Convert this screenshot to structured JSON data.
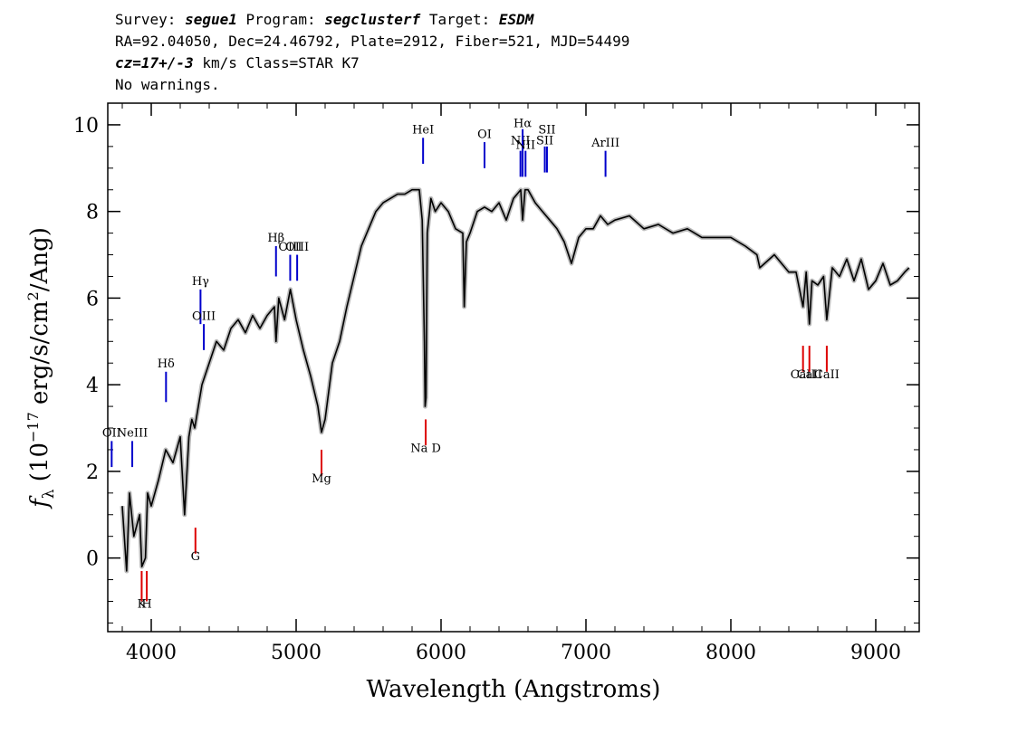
{
  "header": {
    "survey_label": "Survey:",
    "survey": "segue1",
    "program_label": "Program:",
    "program": "segclusterf",
    "target_label": "Target:",
    "target": "ESDM",
    "line2": "RA=92.04050, Dec=24.46792, Plate=2912, Fiber=521, MJD=54499",
    "cz": "cz=17+/-3",
    "line3_rest": "km/s Class=STAR K7",
    "line4": "No warnings."
  },
  "chart_data": {
    "type": "line",
    "xlabel": "Wavelength (Angstroms)",
    "ylabel_main": "f",
    "ylabel_sub": "λ",
    "ylabel_rest_1": " (10",
    "ylabel_exp": "−17",
    "ylabel_rest_2": " erg/s/cm",
    "ylabel_exp2": "2",
    "ylabel_rest_3": "/Ang)",
    "xlim": [
      3700,
      9300
    ],
    "ylim": [
      -1.7,
      10.5
    ],
    "x_ticks": [
      4000,
      5000,
      6000,
      7000,
      8000,
      9000
    ],
    "y_ticks": [
      0,
      2,
      4,
      6,
      8,
      10
    ],
    "x_minor_step": 200,
    "y_minor_step": 0.5,
    "series_colors": {
      "flux": "#000000",
      "model": "#bbbbbb",
      "emission": "#0000cc",
      "absorption": "#dd0000"
    },
    "flux": {
      "x": [
        3800,
        3830,
        3850,
        3880,
        3920,
        3935,
        3960,
        3975,
        4000,
        4050,
        4100,
        4150,
        4200,
        4230,
        4260,
        4280,
        4300,
        4350,
        4400,
        4450,
        4500,
        4550,
        4600,
        4650,
        4700,
        4750,
        4800,
        4850,
        4861,
        4880,
        4920,
        4960,
        5000,
        5050,
        5100,
        5150,
        5175,
        5200,
        5250,
        5300,
        5350,
        5400,
        5450,
        5500,
        5550,
        5600,
        5650,
        5700,
        5750,
        5800,
        5850,
        5870,
        5885,
        5890,
        5896,
        5905,
        5930,
        5960,
        6000,
        6050,
        6100,
        6150,
        6160,
        6175,
        6200,
        6250,
        6300,
        6350,
        6400,
        6450,
        6500,
        6550,
        6563,
        6580,
        6600,
        6650,
        6700,
        6750,
        6800,
        6850,
        6900,
        6950,
        7000,
        7050,
        7100,
        7150,
        7200,
        7300,
        7400,
        7500,
        7600,
        7700,
        7800,
        7900,
        8000,
        8100,
        8180,
        8200,
        8300,
        8400,
        8450,
        8498,
        8520,
        8542,
        8560,
        8600,
        8640,
        8662,
        8700,
        8750,
        8800,
        8850,
        8900,
        8950,
        9000,
        9050,
        9100,
        9150,
        9200,
        9230
      ],
      "y": [
        1.2,
        -0.3,
        1.5,
        0.5,
        1.0,
        -0.2,
        0.0,
        1.5,
        1.2,
        1.8,
        2.5,
        2.2,
        2.8,
        1.0,
        2.8,
        3.2,
        3.0,
        4.0,
        4.5,
        5.0,
        4.8,
        5.3,
        5.5,
        5.2,
        5.6,
        5.3,
        5.6,
        5.8,
        5.0,
        6.0,
        5.5,
        6.2,
        5.5,
        4.8,
        4.2,
        3.5,
        2.9,
        3.2,
        4.5,
        5.0,
        5.8,
        6.5,
        7.2,
        7.6,
        8.0,
        8.2,
        8.3,
        8.4,
        8.4,
        8.5,
        8.5,
        7.8,
        5.0,
        3.5,
        3.7,
        7.5,
        8.3,
        8.0,
        8.2,
        8.0,
        7.6,
        7.5,
        5.8,
        7.3,
        7.5,
        8.0,
        8.1,
        8.0,
        8.2,
        7.8,
        8.3,
        8.5,
        7.8,
        8.5,
        8.5,
        8.2,
        8.0,
        7.8,
        7.6,
        7.3,
        6.8,
        7.4,
        7.6,
        7.6,
        7.9,
        7.7,
        7.8,
        7.9,
        7.6,
        7.7,
        7.5,
        7.6,
        7.4,
        7.4,
        7.4,
        7.2,
        7.0,
        6.7,
        7.0,
        6.6,
        6.6,
        5.8,
        6.6,
        5.4,
        6.4,
        6.3,
        6.5,
        5.5,
        6.7,
        6.5,
        6.9,
        6.4,
        6.9,
        6.2,
        6.4,
        6.8,
        6.3,
        6.4,
        6.6,
        6.7
      ]
    },
    "emission_lines": [
      {
        "label": "OII",
        "x": 3727,
        "y0": 2.1,
        "y1": 2.7,
        "label_y": 2.8
      },
      {
        "label": "NeIII",
        "x": 3869,
        "y0": 2.1,
        "y1": 2.7,
        "label_y": 2.8
      },
      {
        "label": "Hδ",
        "x": 4102,
        "y0": 3.6,
        "y1": 4.3,
        "label_y": 4.4
      },
      {
        "label": "Hγ",
        "x": 4340,
        "y0": 5.4,
        "y1": 6.2,
        "label_y": 6.3
      },
      {
        "label": "OIII",
        "x": 4363,
        "y0": 4.8,
        "y1": 5.4,
        "label_y": 5.5
      },
      {
        "label": "Hβ",
        "x": 4861,
        "y0": 6.5,
        "y1": 7.2,
        "label_y": 7.3
      },
      {
        "label": "OIII",
        "x": 4959,
        "y0": 6.4,
        "y1": 7.0,
        "label_y": 7.1
      },
      {
        "label": "OIII",
        "x": 5007,
        "y0": 6.4,
        "y1": 7.0,
        "label_y": 7.1
      },
      {
        "label": "HeI",
        "x": 5876,
        "y0": 9.1,
        "y1": 9.7,
        "label_y": 9.8
      },
      {
        "label": "OI",
        "x": 6300,
        "y0": 9.0,
        "y1": 9.6,
        "label_y": 9.7
      },
      {
        "label": "NII",
        "x": 6548,
        "y0": 8.8,
        "y1": 9.4,
        "label_y": 9.55
      },
      {
        "label": "Hα",
        "x": 6563,
        "y0": 8.8,
        "y1": 9.9,
        "label_y": 9.95
      },
      {
        "label": "NII",
        "x": 6583,
        "y0": 8.8,
        "y1": 9.4,
        "label_y": 9.45
      },
      {
        "label": "SII",
        "x": 6716,
        "y0": 8.9,
        "y1": 9.5,
        "label_y": 9.55
      },
      {
        "label": "SII",
        "x": 6731,
        "y0": 8.9,
        "y1": 9.5,
        "label_y": 9.8
      },
      {
        "label": "ArIII",
        "x": 7135,
        "y0": 8.8,
        "y1": 9.4,
        "label_y": 9.5
      }
    ],
    "absorption_lines": [
      {
        "label": "K",
        "x": 3934,
        "y0": -1.0,
        "y1": -0.3,
        "label_y": -1.15
      },
      {
        "label": "H",
        "x": 3969,
        "y0": -1.0,
        "y1": -0.3,
        "label_y": -1.15
      },
      {
        "label": "G",
        "x": 4305,
        "y0": 0.1,
        "y1": 0.7,
        "label_y": -0.05
      },
      {
        "label": "Mg",
        "x": 5175,
        "y0": 1.9,
        "y1": 2.5,
        "label_y": 1.75
      },
      {
        "label": "Na D",
        "x": 5894,
        "y0": 2.6,
        "y1": 3.2,
        "label_y": 2.45
      },
      {
        "label": "CaII",
        "x": 8498,
        "y0": 4.3,
        "y1": 4.9,
        "label_y": 4.15
      },
      {
        "label": "CaII",
        "x": 8542,
        "y0": 4.3,
        "y1": 4.9,
        "label_y": 4.15
      },
      {
        "label": "CaII",
        "x": 8662,
        "y0": 4.3,
        "y1": 4.9,
        "label_y": 4.15
      }
    ]
  }
}
